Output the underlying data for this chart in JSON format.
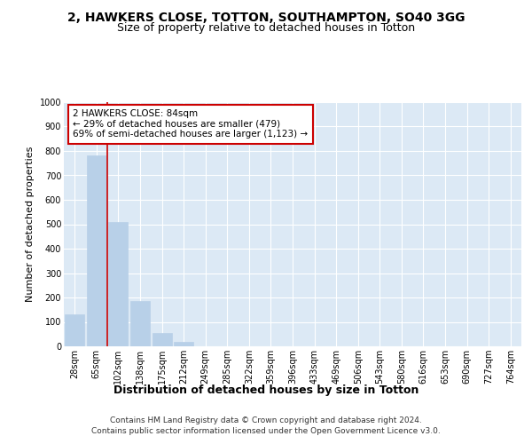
{
  "title": "2, HAWKERS CLOSE, TOTTON, SOUTHAMPTON, SO40 3GG",
  "subtitle": "Size of property relative to detached houses in Totton",
  "xlabel": "Distribution of detached houses by size in Totton",
  "ylabel": "Number of detached properties",
  "bin_labels": [
    "28sqm",
    "65sqm",
    "102sqm",
    "138sqm",
    "175sqm",
    "212sqm",
    "249sqm",
    "285sqm",
    "322sqm",
    "359sqm",
    "396sqm",
    "433sqm",
    "469sqm",
    "506sqm",
    "543sqm",
    "580sqm",
    "616sqm",
    "653sqm",
    "690sqm",
    "727sqm",
    "764sqm"
  ],
  "bar_values": [
    130,
    780,
    510,
    185,
    55,
    20,
    0,
    0,
    0,
    0,
    0,
    0,
    0,
    0,
    0,
    0,
    0,
    0,
    0,
    0,
    0
  ],
  "bar_color": "#b8d0e8",
  "bar_edgecolor": "#b8d0e8",
  "vline_x": 1.5,
  "vline_color": "#cc0000",
  "annotation_text": "2 HAWKERS CLOSE: 84sqm\n← 29% of detached houses are smaller (479)\n69% of semi-detached houses are larger (1,123) →",
  "annotation_box_color": "#ffffff",
  "annotation_box_edgecolor": "#cc0000",
  "ylim": [
    0,
    1000
  ],
  "yticks": [
    0,
    100,
    200,
    300,
    400,
    500,
    600,
    700,
    800,
    900,
    1000
  ],
  "background_color": "#dce9f5",
  "plot_bg_color": "#dce9f5",
  "grid_color": "#ffffff",
  "footer_line1": "Contains HM Land Registry data © Crown copyright and database right 2024.",
  "footer_line2": "Contains public sector information licensed under the Open Government Licence v3.0.",
  "title_fontsize": 10,
  "subtitle_fontsize": 9,
  "xlabel_fontsize": 9,
  "ylabel_fontsize": 8,
  "tick_fontsize": 7,
  "footer_fontsize": 6.5,
  "annotation_fontsize": 7.5
}
